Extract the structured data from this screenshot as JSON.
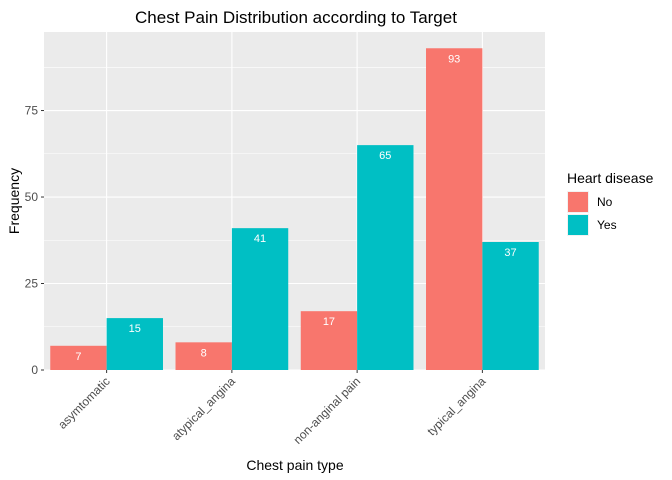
{
  "chart_data": {
    "type": "bar",
    "title": "Chest Pain Distribution according to Target",
    "xlabel": "Chest pain type",
    "ylabel": "Frequency",
    "categories": [
      "asymtomatic",
      "atypical_angina",
      "non-anginal pain",
      "typical_angina"
    ],
    "series": [
      {
        "name": "No",
        "values": [
          7,
          8,
          17,
          93
        ],
        "color": "#F8766D"
      },
      {
        "name": "Yes",
        "values": [
          15,
          41,
          65,
          37
        ],
        "color": "#00BFC4"
      }
    ],
    "ylim": [
      0,
      97.7
    ],
    "yticks": [
      0,
      25,
      50,
      75
    ],
    "yticks_labels": [
      "0",
      "25",
      "50",
      "75"
    ],
    "legend": {
      "title": "Heart disease",
      "position": "right"
    },
    "panel_background": "#EBEBEB",
    "grid": true,
    "data_labels": true
  }
}
